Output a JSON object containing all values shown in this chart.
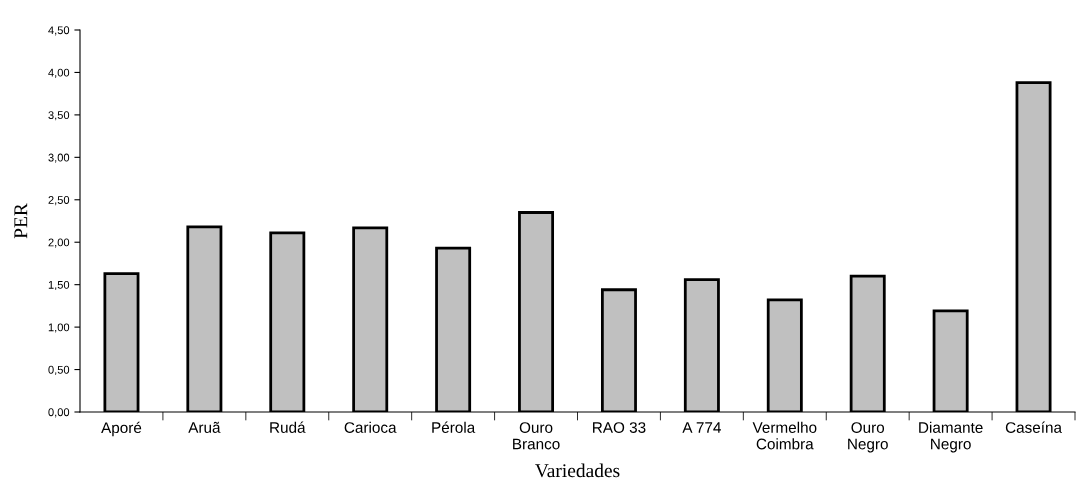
{
  "chart_data": {
    "type": "bar",
    "xlabel": "Variedades",
    "ylabel": "PER",
    "categories": [
      "Aporé",
      "Aruã",
      "Rudá",
      "Carioca",
      "Pérola",
      "Ouro\nBranco",
      "RAO 33",
      "A 774",
      "Vermelho\nCoimbra",
      "Ouro\nNegro",
      "Diamante\nNegro",
      "Caseína"
    ],
    "values": [
      1.63,
      2.18,
      2.11,
      2.17,
      1.93,
      2.35,
      1.44,
      1.56,
      1.32,
      1.6,
      1.19,
      3.88
    ],
    "color": "#c0c0c0",
    "ylim": [
      0,
      4.5
    ],
    "yticks": [
      {
        "value": 0,
        "label": "0,00"
      },
      {
        "value": 0.5,
        "label": "0,50"
      },
      {
        "value": 1,
        "label": "1,00"
      },
      {
        "value": 1.5,
        "label": "1,50"
      },
      {
        "value": 2,
        "label": "2,00"
      },
      {
        "value": 2.5,
        "label": "2,50"
      },
      {
        "value": 3,
        "label": "3,00"
      },
      {
        "value": 3.5,
        "label": "3,50"
      },
      {
        "value": 4,
        "label": "4,00"
      },
      {
        "value": 4.5,
        "label": "4,50"
      }
    ],
    "grid": false
  }
}
